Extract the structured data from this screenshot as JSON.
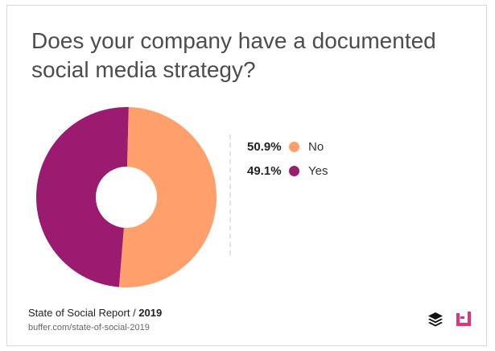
{
  "title": {
    "line1": "Does your company have a documented",
    "line2": "social media strategy?"
  },
  "chart_data": {
    "type": "pie",
    "subtype": "donut",
    "title": "Does your company have a documented social media strategy?",
    "categories": [
      "No",
      "Yes"
    ],
    "values": [
      50.9,
      49.1
    ],
    "labels": [
      "50.9%",
      "49.1%"
    ],
    "colors": [
      "#FF9F6B",
      "#9B1B70"
    ]
  },
  "footer": {
    "report": "State of Social Report / ",
    "year": "2019",
    "url": "buffer.com/state-of-social-2019"
  },
  "icons": {
    "brand": "buffer-stack-icon",
    "partner": "partner-logo-icon"
  }
}
